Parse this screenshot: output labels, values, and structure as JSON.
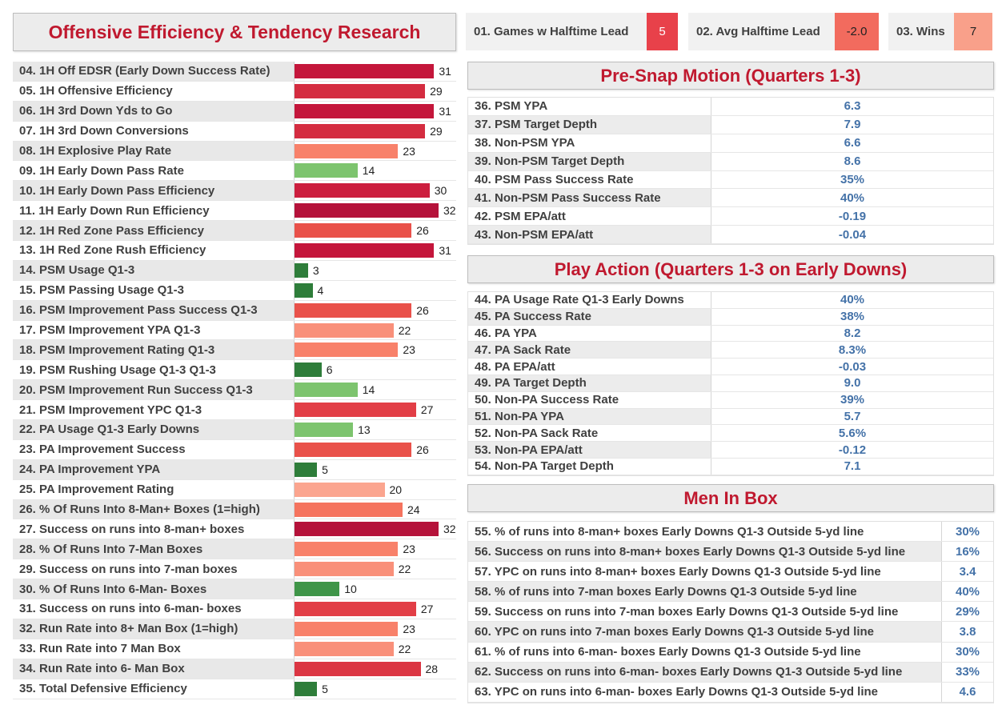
{
  "title": "Offensive Efficiency & Tendency Research",
  "kpis": [
    {
      "label": "01. Games w Halftime Lead",
      "value": "5",
      "color": "#e8414a",
      "text_color": "#ffffff"
    },
    {
      "label": "02. Avg Halftime Lead",
      "value": "-2.0",
      "color": "#f26b5e",
      "text_color": "#222222"
    },
    {
      "label": "03. Wins",
      "value": "7",
      "color": "#f9a08a",
      "text_color": "#222222"
    }
  ],
  "chart_data": {
    "type": "bar",
    "orientation": "horizontal",
    "xlim": [
      0,
      32
    ],
    "categories": [
      "04. 1H Off EDSR (Early Down Success Rate)",
      "05. 1H Offensive Efficiency",
      "06. 1H 3rd Down Yds to Go",
      "07. 1H 3rd Down Conversions",
      "08. 1H Explosive Play Rate",
      "09. 1H Early Down Pass Rate",
      "10. 1H Early Down Pass Efficiency",
      "11. 1H Early Down Run Efficiency",
      "12. 1H Red Zone Pass Efficiency",
      "13. 1H Red Zone Rush Efficiency",
      "14. PSM Usage Q1-3",
      "15. PSM Passing Usage Q1-3",
      "16. PSM Improvement Pass Success Q1-3",
      "17. PSM Improvement YPA Q1-3",
      "18. PSM Improvement Rating Q1-3",
      "19. PSM Rushing Usage Q1-3 Q1-3",
      "20. PSM Improvement Run Success Q1-3",
      "21. PSM Improvement YPC Q1-3",
      "22. PA Usage Q1-3 Early Downs",
      "23. PA Improvement Success",
      "24. PA Improvement YPA",
      "25. PA Improvement Rating",
      "26. % Of Runs Into 8-Man+ Boxes (1=high)",
      "27. Success on runs into 8-man+ boxes",
      "28. % Of Runs Into 7-Man Boxes",
      "29. Success on runs into 7-man boxes",
      "30. % Of Runs Into 6-Man- Boxes",
      "31. Success on runs into 6-man- boxes",
      "32. Run Rate into 8+ Man Box (1=high)",
      "33. Run Rate into 7 Man Box",
      "34. Run Rate into 6- Man Box",
      "35. Total Defensive Efficiency"
    ],
    "values": [
      31,
      29,
      31,
      29,
      23,
      14,
      30,
      32,
      26,
      31,
      3,
      4,
      26,
      22,
      23,
      6,
      14,
      27,
      13,
      26,
      5,
      20,
      24,
      32,
      23,
      22,
      10,
      27,
      23,
      22,
      28,
      5
    ],
    "colors": [
      "#c4163b",
      "#d42c40",
      "#c4163b",
      "#d42c40",
      "#f8816a",
      "#7dc46e",
      "#cc1e3e",
      "#b5123a",
      "#e9514a",
      "#c4163b",
      "#2e7d3a",
      "#2e7d3a",
      "#e9514a",
      "#f9907a",
      "#f8816a",
      "#2e7d3a",
      "#7dc46e",
      "#e23e46",
      "#7dc46e",
      "#e9514a",
      "#2e7d3a",
      "#fba58f",
      "#f5735e",
      "#b5123a",
      "#f8816a",
      "#f9907a",
      "#3f9548",
      "#e23e46",
      "#f8816a",
      "#f9907a",
      "#db3542",
      "#2e7d3a"
    ]
  },
  "psm": {
    "title": "Pre-Snap Motion (Quarters 1-3)",
    "rows": [
      {
        "label": "36. PSM YPA",
        "value": "6.3"
      },
      {
        "label": "37. PSM Target Depth",
        "value": "7.9"
      },
      {
        "label": "38. Non-PSM YPA",
        "value": "6.6"
      },
      {
        "label": "39. Non-PSM Target Depth",
        "value": "8.6"
      },
      {
        "label": "40. PSM Pass Success Rate",
        "value": "35%"
      },
      {
        "label": "41. Non-PSM Pass Success Rate",
        "value": "40%"
      },
      {
        "label": "42. PSM EPA/att",
        "value": "-0.19"
      },
      {
        "label": "43. Non-PSM EPA/att",
        "value": "-0.04"
      }
    ]
  },
  "pa": {
    "title": "Play Action (Quarters 1-3 on Early Downs)",
    "rows": [
      {
        "label": "44. PA Usage Rate Q1-3 Early Downs",
        "value": "40%"
      },
      {
        "label": "45. PA Success Rate",
        "value": "38%"
      },
      {
        "label": "46. PA YPA",
        "value": "8.2"
      },
      {
        "label": "47. PA Sack Rate",
        "value": "8.3%"
      },
      {
        "label": "48. PA EPA/att",
        "value": "-0.03"
      },
      {
        "label": "49. PA Target Depth",
        "value": "9.0"
      },
      {
        "label": "50. Non-PA Success Rate",
        "value": "39%"
      },
      {
        "label": "51. Non-PA YPA",
        "value": "5.7"
      },
      {
        "label": "52. Non-PA Sack Rate",
        "value": "5.6%"
      },
      {
        "label": "53. Non-PA EPA/att",
        "value": "-0.12"
      },
      {
        "label": "54. Non-PA Target Depth",
        "value": "7.1"
      }
    ]
  },
  "mib": {
    "title": "Men In Box",
    "rows": [
      {
        "label": "55. % of runs into 8-man+ boxes Early Downs Q1-3 Outside 5-yd line",
        "value": "30%"
      },
      {
        "label": "56. Success on runs into 8-man+ boxes Early Downs Q1-3 Outside 5-yd line",
        "value": "16%"
      },
      {
        "label": "57. YPC on runs into 8-man+ boxes Early Downs Q1-3 Outside 5-yd line",
        "value": "3.4"
      },
      {
        "label": "58. % of runs into 7-man boxes Early Downs Q1-3 Outside 5-yd line",
        "value": "40%"
      },
      {
        "label": "59. Success on runs into 7-man boxes Early Downs Q1-3 Outside 5-yd line",
        "value": "29%"
      },
      {
        "label": "60. YPC on runs into 7-man boxes Early Downs Q1-3 Outside 5-yd line",
        "value": "3.8"
      },
      {
        "label": "61. % of runs into 6-man- boxes Early Downs Q1-3 Outside 5-yd line",
        "value": "30%"
      },
      {
        "label": "62. Success on runs into 6-man- boxes Early Downs Q1-3 Outside 5-yd line",
        "value": "33%"
      },
      {
        "label": "63. YPC on runs into 6-man- boxes Early Downs Q1-3 Outside 5-yd line",
        "value": "4.6"
      }
    ]
  }
}
